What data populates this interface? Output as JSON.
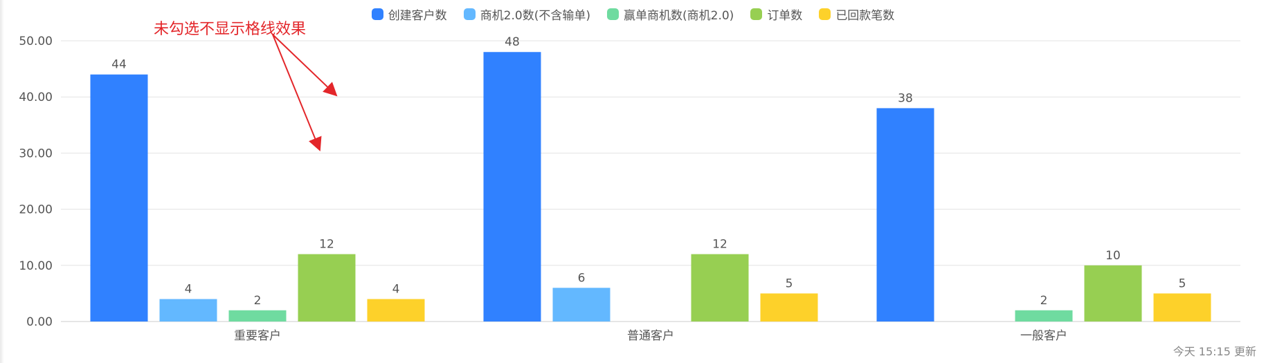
{
  "annotation": {
    "text": "未勾选不显示格线效果",
    "color": "#e3262a"
  },
  "footer": {
    "text": "今天 15:15 更新"
  },
  "chart_data": {
    "type": "bar",
    "title": "",
    "xlabel": "",
    "ylabel": "",
    "categories": [
      "重要客户",
      "普通客户",
      "一般客户"
    ],
    "ylim": [
      0,
      50
    ],
    "yticks": [
      "0.00",
      "10.00",
      "20.00",
      "30.00",
      "40.00",
      "50.00"
    ],
    "grid": true,
    "legend_position": "top-center",
    "series": [
      {
        "name": "创建客户数",
        "color": "#3081ff",
        "values": [
          44,
          48,
          38
        ]
      },
      {
        "name": "商机2.0数(不含输单)",
        "color": "#63b8ff",
        "values": [
          4,
          6,
          null
        ]
      },
      {
        "name": "赢单商机数(商机2.0)",
        "color": "#6fdba0",
        "values": [
          2,
          null,
          2
        ]
      },
      {
        "name": "订单数",
        "color": "#97cf52",
        "values": [
          12,
          12,
          10
        ]
      },
      {
        "name": "已回款笔数",
        "color": "#fdd12a",
        "values": [
          4,
          5,
          5
        ]
      }
    ]
  }
}
